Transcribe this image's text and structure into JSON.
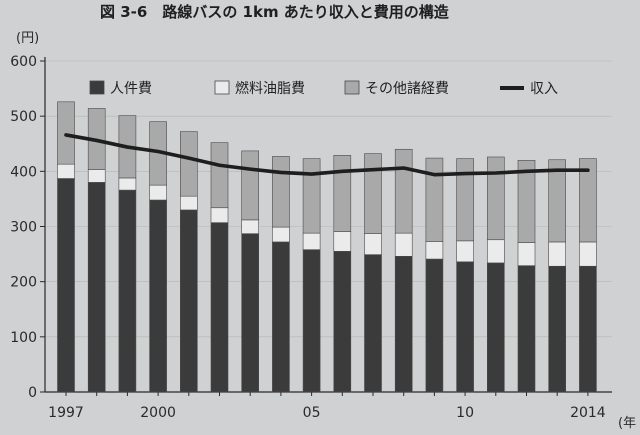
{
  "chart_data": {
    "type": "bar",
    "title": "図 3-6　路線バスの 1km あたり収入と費用の構造",
    "ylabel": "(円)",
    "xlabel": "(年",
    "ylim": [
      0,
      600
    ],
    "yticks": [
      "0",
      "100",
      "200",
      "300",
      "400",
      "500",
      "600"
    ],
    "years": [
      1997,
      1998,
      1999,
      2000,
      2001,
      2002,
      2003,
      2004,
      2005,
      2006,
      2007,
      2008,
      2009,
      2010,
      2011,
      2012,
      2013,
      2014
    ],
    "xtick_labels": [
      "1997",
      "",
      "",
      "2000",
      "",
      "",
      "",
      "",
      "05",
      "",
      "",
      "",
      "",
      "10",
      "",
      "",
      "",
      "2014"
    ],
    "legend_position": "top",
    "series": [
      {
        "name": "人件費",
        "kind": "bar",
        "color": "#3b3b3b",
        "values": [
          387,
          380,
          366,
          348,
          330,
          307,
          287,
          272,
          258,
          255,
          249,
          246,
          241,
          236,
          234,
          229,
          228,
          228
        ]
      },
      {
        "name": "燃料油脂費",
        "kind": "bar",
        "color": "#ebebeb",
        "values": [
          26,
          23,
          22,
          27,
          25,
          27,
          25,
          27,
          30,
          36,
          38,
          42,
          32,
          38,
          42,
          42,
          44,
          44
        ]
      },
      {
        "name": "その他諸経費",
        "kind": "bar",
        "color": "#a9a9a9",
        "values": [
          113,
          111,
          113,
          115,
          117,
          118,
          125,
          128,
          135,
          138,
          145,
          152,
          151,
          149,
          150,
          149,
          149,
          151
        ]
      },
      {
        "name": "収入",
        "kind": "line",
        "color": "#1e1e1e",
        "values": [
          466,
          456,
          444,
          436,
          424,
          411,
          404,
          398,
          395,
          400,
          403,
          406,
          394,
          396,
          397,
          400,
          402,
          402
        ]
      }
    ]
  }
}
